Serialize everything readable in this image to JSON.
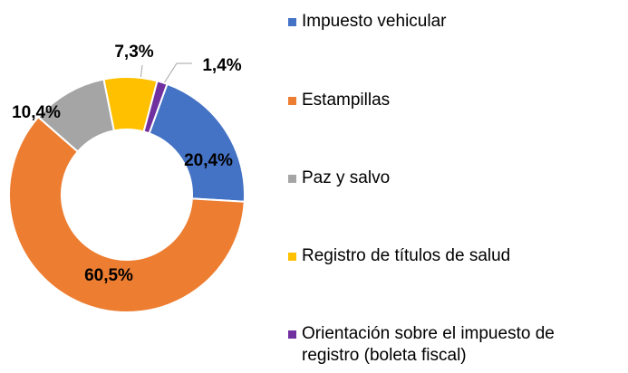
{
  "chart_data": {
    "type": "donut",
    "categories": [
      "Impuesto vehicular",
      "Estampillas",
      "Paz y salvo",
      "Registro de títulos de salud",
      "Orientación sobre el impuesto de registro (boleta fiscal)"
    ],
    "values": [
      20.4,
      60.5,
      10.4,
      7.3,
      1.4
    ],
    "value_labels": [
      "20,4%",
      "60,5%",
      "10,4%",
      "7,3%",
      "1,4%"
    ],
    "colors": [
      "#4472c4",
      "#ed7d31",
      "#a5a5a5",
      "#ffc000",
      "#7030a0"
    ]
  }
}
